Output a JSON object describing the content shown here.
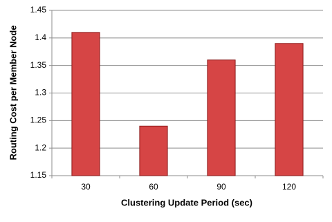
{
  "chart_data": {
    "type": "bar",
    "x_label": "Clustering Update Period (sec)",
    "y_label": "Routing Cost per Member Node",
    "categories": [
      "30",
      "60",
      "90",
      "120"
    ],
    "values": [
      1.41,
      1.24,
      1.36,
      1.39
    ],
    "color": "#d64545",
    "ylim": [
      1.15,
      1.45
    ],
    "yticks": [
      1.15,
      1.2,
      1.25,
      1.3,
      1.35,
      1.4,
      1.45
    ],
    "grid": true
  }
}
